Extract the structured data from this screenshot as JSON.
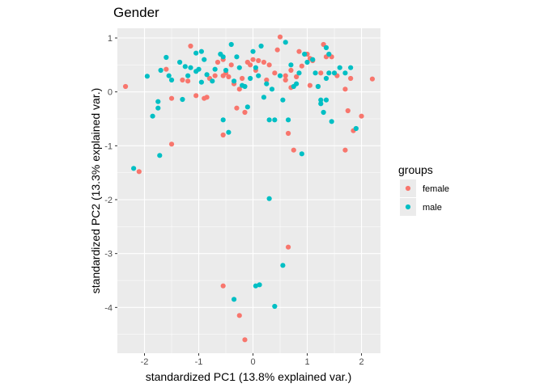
{
  "chart_data": {
    "type": "scatter",
    "title": "Gender",
    "xlabel": "standardized PC1 (13.8% explained var.)",
    "ylabel": "standardized PC2 (13.3% explained var.)",
    "xlim": [
      -2.5,
      2.35
    ],
    "ylim": [
      -4.85,
      1.18
    ],
    "xticks": [
      -2,
      -1,
      0,
      1,
      2
    ],
    "yticks": [
      1,
      0,
      -1,
      -2,
      -3,
      -4
    ],
    "grid": true,
    "legend_title": "groups",
    "legend_position": "right",
    "series": [
      {
        "name": "female",
        "color": "#F8766D",
        "points": [
          [
            -2.35,
            0.1
          ],
          [
            -2.1,
            -1.48
          ],
          [
            -1.5,
            -0.97
          ],
          [
            -1.5,
            -0.12
          ],
          [
            -1.6,
            0.42
          ],
          [
            -1.2,
            0.2
          ],
          [
            -1.15,
            0.85
          ],
          [
            -1.05,
            -0.07
          ],
          [
            -0.9,
            -0.12
          ],
          [
            -0.85,
            -0.1
          ],
          [
            -0.8,
            0.25
          ],
          [
            -0.7,
            0.3
          ],
          [
            -0.65,
            0.55
          ],
          [
            -0.55,
            0.6
          ],
          [
            -0.55,
            0.3
          ],
          [
            -0.5,
            0.35
          ],
          [
            -0.45,
            0.28
          ],
          [
            -0.4,
            0.5
          ],
          [
            -0.35,
            0.15
          ],
          [
            -0.3,
            -0.3
          ],
          [
            -0.25,
            0.05
          ],
          [
            -0.2,
            0.25
          ],
          [
            -0.15,
            -0.38
          ],
          [
            -0.1,
            0.55
          ],
          [
            -0.05,
            0.5
          ],
          [
            0,
            0.6
          ],
          [
            0.05,
            0.4
          ],
          [
            0.1,
            0.58
          ],
          [
            0.2,
            0.55
          ],
          [
            0.25,
            0.22
          ],
          [
            0.3,
            0.5
          ],
          [
            0.4,
            0.35
          ],
          [
            0.45,
            0.78
          ],
          [
            0.5,
            1.02
          ],
          [
            0.6,
            0.3
          ],
          [
            0.6,
            0.22
          ],
          [
            0.65,
            -0.77
          ],
          [
            0.7,
            0.4
          ],
          [
            0.7,
            0.08
          ],
          [
            0.75,
            -1.08
          ],
          [
            0.8,
            0.28
          ],
          [
            0.85,
            0.75
          ],
          [
            0.9,
            0.48
          ],
          [
            1.0,
            0.7
          ],
          [
            1.05,
            0.62
          ],
          [
            1.1,
            0.58
          ],
          [
            1.2,
            0.1
          ],
          [
            1.25,
            0.35
          ],
          [
            1.3,
            0.88
          ],
          [
            1.35,
            0.65
          ],
          [
            1.45,
            0.65
          ],
          [
            1.55,
            0.3
          ],
          [
            1.7,
            0.05
          ],
          [
            1.75,
            -0.35
          ],
          [
            1.8,
            0.25
          ],
          [
            1.85,
            -0.72
          ],
          [
            2.0,
            -0.45
          ],
          [
            2.2,
            0.24
          ],
          [
            1.7,
            -1.08
          ],
          [
            -1.3,
            0.22
          ],
          [
            -0.55,
            -0.8
          ],
          [
            -0.55,
            -3.6
          ],
          [
            -0.25,
            -4.15
          ],
          [
            -0.15,
            -4.6
          ],
          [
            0.65,
            -2.88
          ],
          [
            1.05,
            0.12
          ]
        ]
      },
      {
        "name": "male",
        "color": "#00BFC4",
        "points": [
          [
            -2.2,
            -1.42
          ],
          [
            -1.95,
            0.29
          ],
          [
            -1.75,
            -0.3
          ],
          [
            -1.75,
            -0.18
          ],
          [
            -1.72,
            -1.18
          ],
          [
            -1.7,
            0.4
          ],
          [
            -1.6,
            0.64
          ],
          [
            -1.55,
            0.3
          ],
          [
            -1.5,
            0.22
          ],
          [
            -1.35,
            0.55
          ],
          [
            -1.3,
            -0.14
          ],
          [
            -1.25,
            0.47
          ],
          [
            -1.2,
            0.3
          ],
          [
            -1.15,
            0.45
          ],
          [
            -1.05,
            0.72
          ],
          [
            -1.05,
            0.38
          ],
          [
            -1.0,
            0.42
          ],
          [
            -0.95,
            0.18
          ],
          [
            -0.95,
            0.75
          ],
          [
            -0.9,
            0.6
          ],
          [
            -0.85,
            0.32
          ],
          [
            -0.75,
            0.2
          ],
          [
            -0.7,
            0.42
          ],
          [
            -0.6,
            0.7
          ],
          [
            -0.55,
            0.65
          ],
          [
            -0.55,
            -0.52
          ],
          [
            -0.5,
            0.4
          ],
          [
            -0.45,
            -0.75
          ],
          [
            -0.4,
            0.88
          ],
          [
            -0.35,
            0.2
          ],
          [
            -0.3,
            0.65
          ],
          [
            -0.25,
            0.45
          ],
          [
            -0.2,
            0.12
          ],
          [
            -0.15,
            0.1
          ],
          [
            -0.1,
            -0.28
          ],
          [
            -0.05,
            0.25
          ],
          [
            0.0,
            0.75
          ],
          [
            0.05,
            0.45
          ],
          [
            0.1,
            0.3
          ],
          [
            0.15,
            0.85
          ],
          [
            0.2,
            -0.1
          ],
          [
            0.25,
            0.15
          ],
          [
            0.3,
            -0.52
          ],
          [
            0.3,
            -1.98
          ],
          [
            0.35,
            0.05
          ],
          [
            0.4,
            -0.52
          ],
          [
            0.5,
            0.3
          ],
          [
            0.55,
            -0.15
          ],
          [
            0.6,
            0.92
          ],
          [
            0.65,
            -0.52
          ],
          [
            0.7,
            0.5
          ],
          [
            0.75,
            0.1
          ],
          [
            0.8,
            0.15
          ],
          [
            0.85,
            0.35
          ],
          [
            0.9,
            -1.15
          ],
          [
            0.95,
            0.7
          ],
          [
            1.0,
            0.55
          ],
          [
            1.1,
            0.6
          ],
          [
            1.15,
            0.35
          ],
          [
            1.2,
            0.1
          ],
          [
            1.25,
            -0.22
          ],
          [
            1.3,
            -0.38
          ],
          [
            1.35,
            0.82
          ],
          [
            1.35,
            0.25
          ],
          [
            1.4,
            0.35
          ],
          [
            1.45,
            -0.55
          ],
          [
            1.5,
            0.35
          ],
          [
            1.6,
            0.45
          ],
          [
            1.7,
            0.35
          ],
          [
            1.8,
            0.45
          ],
          [
            1.9,
            -0.68
          ],
          [
            1.25,
            -0.15
          ],
          [
            1.35,
            -0.15
          ],
          [
            0.55,
            -3.22
          ],
          [
            0.05,
            -3.6
          ],
          [
            -0.35,
            -3.85
          ],
          [
            0.4,
            -3.98
          ],
          [
            -1.85,
            -0.45
          ],
          [
            0.12,
            -3.58
          ],
          [
            1.4,
            0.7
          ]
        ]
      }
    ]
  }
}
